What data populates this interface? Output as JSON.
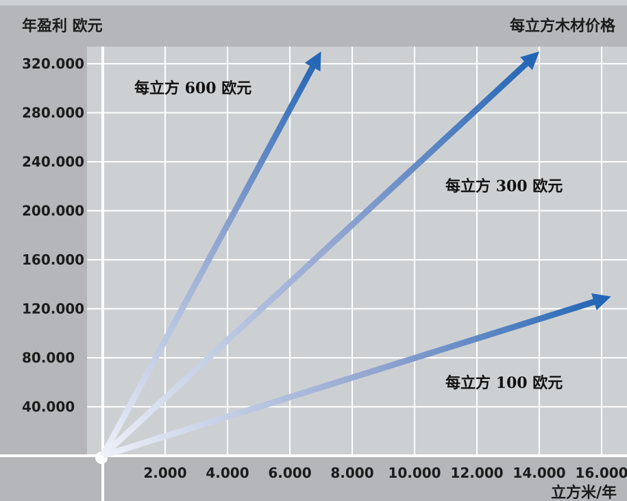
{
  "chart_data": {
    "type": "line",
    "ylabel": "年盈利 欧元",
    "legend_title": "每立方木材价格",
    "xlabel": "立方米/年",
    "x_ticks": [
      "2.000",
      "4.000",
      "6.000",
      "8.000",
      "10.000",
      "12.000",
      "14.000",
      "16.000"
    ],
    "y_ticks": [
      "40.000",
      "80.000",
      "120.000",
      "160.000",
      "200.000",
      "240.000",
      "280.000",
      "320.000"
    ],
    "xlim": [
      0,
      16000
    ],
    "ylim": [
      0,
      320000
    ],
    "grid": true,
    "series": [
      {
        "name": "每立方 600 欧元",
        "x": [
          0,
          7000
        ],
        "y": [
          0,
          330000
        ]
      },
      {
        "name": "每立方 300 欧元",
        "x": [
          0,
          14000
        ],
        "y": [
          0,
          330000
        ]
      },
      {
        "name": "每立方 100 欧元",
        "x": [
          0,
          16300
        ],
        "y": [
          0,
          130000
        ]
      }
    ],
    "colors": {
      "arrow": "#1f63b5",
      "arrow_fade": "#eef1f8",
      "plot_bg": "#cdd0d3",
      "frame_bg": "#b4b6ba",
      "grid": "#ffffff"
    }
  }
}
